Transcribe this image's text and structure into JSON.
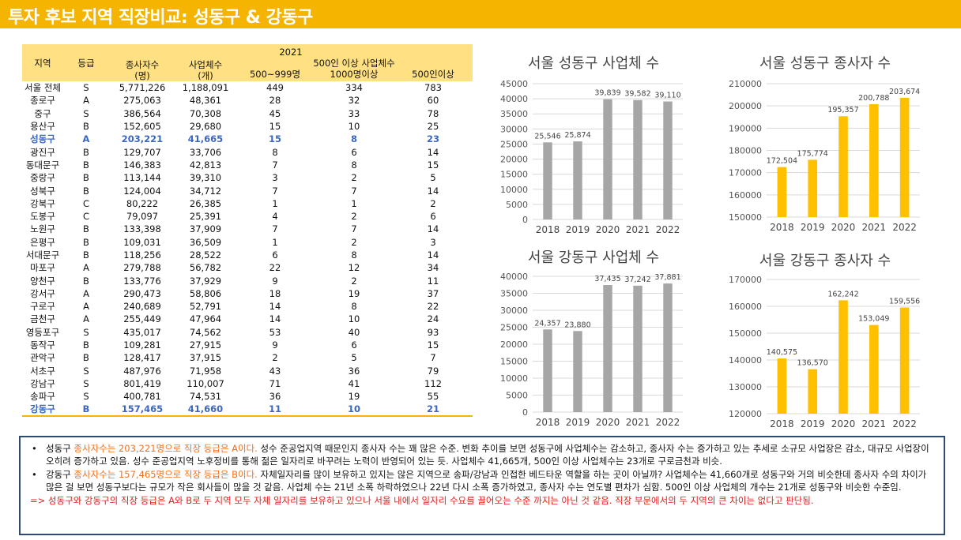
{
  "title": "투자 후보 지역 직장비교: 성동구 & 강동구",
  "table": {
    "year": "2021",
    "headers": {
      "region": "지역",
      "grade": "등급",
      "workers_1": "종사자수",
      "workers_2": "(명)",
      "biz_1": "사업체수",
      "biz_2": "(개)",
      "group": "500인 이상 사업체수",
      "c1": "500~999명",
      "c2": "1000명이상",
      "c3": "500인이상"
    },
    "rows": [
      [
        "서울 전체",
        "S",
        "5,771,226",
        "1,188,091",
        "449",
        "334",
        "783"
      ],
      [
        "종로구",
        "A",
        "275,063",
        "48,361",
        "28",
        "32",
        "60"
      ],
      [
        "중구",
        "S",
        "386,564",
        "70,308",
        "45",
        "33",
        "78"
      ],
      [
        "용산구",
        "B",
        "152,605",
        "29,680",
        "15",
        "10",
        "25"
      ],
      [
        "성동구",
        "A",
        "203,221",
        "41,665",
        "15",
        "8",
        "23"
      ],
      [
        "광진구",
        "B",
        "129,707",
        "33,706",
        "8",
        "6",
        "14"
      ],
      [
        "동대문구",
        "B",
        "146,383",
        "42,813",
        "7",
        "8",
        "15"
      ],
      [
        "중랑구",
        "B",
        "113,144",
        "39,310",
        "3",
        "2",
        "5"
      ],
      [
        "성북구",
        "B",
        "124,004",
        "34,712",
        "7",
        "7",
        "14"
      ],
      [
        "강북구",
        "C",
        "80,222",
        "26,385",
        "1",
        "1",
        "2"
      ],
      [
        "도봉구",
        "C",
        "79,097",
        "25,391",
        "4",
        "2",
        "6"
      ],
      [
        "노원구",
        "B",
        "133,398",
        "37,909",
        "7",
        "7",
        "14"
      ],
      [
        "은평구",
        "B",
        "109,031",
        "36,509",
        "1",
        "2",
        "3"
      ],
      [
        "서대문구",
        "B",
        "118,256",
        "28,522",
        "6",
        "8",
        "14"
      ],
      [
        "마포구",
        "A",
        "279,788",
        "56,782",
        "22",
        "12",
        "34"
      ],
      [
        "양천구",
        "B",
        "133,776",
        "37,929",
        "9",
        "2",
        "11"
      ],
      [
        "강서구",
        "A",
        "290,473",
        "58,806",
        "18",
        "19",
        "37"
      ],
      [
        "구로구",
        "A",
        "240,689",
        "52,791",
        "14",
        "8",
        "22"
      ],
      [
        "금천구",
        "A",
        "255,449",
        "47,964",
        "14",
        "10",
        "24"
      ],
      [
        "영등포구",
        "S",
        "435,017",
        "74,562",
        "53",
        "40",
        "93"
      ],
      [
        "동작구",
        "B",
        "109,281",
        "27,915",
        "9",
        "6",
        "15"
      ],
      [
        "관악구",
        "B",
        "128,417",
        "37,915",
        "2",
        "5",
        "7"
      ],
      [
        "서초구",
        "S",
        "487,976",
        "71,958",
        "43",
        "36",
        "79"
      ],
      [
        "강남구",
        "S",
        "801,419",
        "110,007",
        "71",
        "41",
        "112"
      ],
      [
        "송파구",
        "S",
        "400,781",
        "74,531",
        "36",
        "19",
        "55"
      ],
      [
        "강동구",
        "B",
        "157,465",
        "41,660",
        "11",
        "10",
        "21"
      ]
    ],
    "highlight_rows": [
      4,
      25
    ]
  },
  "chart_data": [
    {
      "type": "bar",
      "title": "서울 성동구 사업체 수",
      "categories": [
        "2018",
        "2019",
        "2020",
        "2021",
        "2022"
      ],
      "values": [
        25546,
        25874,
        39839,
        39582,
        39110
      ],
      "labels": [
        "25,546",
        "25,874",
        "39,839",
        "39,582",
        "39,110"
      ],
      "ylim": [
        0,
        45000
      ],
      "yticks": [
        0,
        5000,
        10000,
        15000,
        20000,
        25000,
        30000,
        35000,
        40000,
        45000
      ],
      "color": "#a6a6a6",
      "grid": true
    },
    {
      "type": "bar",
      "title": "서울 성동구 종사자 수",
      "categories": [
        "2018",
        "2019",
        "2020",
        "2021",
        "2022"
      ],
      "values": [
        172504,
        175774,
        195357,
        200788,
        203674
      ],
      "labels": [
        "172,504",
        "175,774",
        "195,357",
        "200,788",
        "203,674"
      ],
      "ylim": [
        150000,
        210000
      ],
      "yticks": [
        150000,
        160000,
        170000,
        180000,
        190000,
        200000,
        210000
      ],
      "color": "#ffc000",
      "grid": true
    },
    {
      "type": "bar",
      "title": "서울 강동구 사업체 수",
      "categories": [
        "2018",
        "2019",
        "2020",
        "2021",
        "2022"
      ],
      "values": [
        24357,
        23880,
        37435,
        37242,
        37881
      ],
      "labels": [
        "24,357",
        "23,880",
        "37,435",
        "37,242",
        "37,881"
      ],
      "ylim": [
        0,
        40000
      ],
      "yticks": [
        0,
        5000,
        10000,
        15000,
        20000,
        25000,
        30000,
        35000,
        40000
      ],
      "color": "#a6a6a6",
      "grid": true
    },
    {
      "type": "bar",
      "title": "서울 강동구 종사자 수",
      "categories": [
        "2018",
        "2019",
        "2020",
        "2021",
        "2022"
      ],
      "values": [
        140575,
        136570,
        162242,
        153049,
        159556
      ],
      "labels": [
        "140,575",
        "136,570",
        "162,242",
        "153,049",
        "159,556"
      ],
      "ylim": [
        120000,
        170000
      ],
      "yticks": [
        120000,
        130000,
        140000,
        150000,
        160000,
        170000
      ],
      "color": "#ffc000",
      "grid": true
    }
  ],
  "notes": {
    "bullet": "•",
    "n1_a": "성동구 ",
    "n1_b": "종사자수는 203,221명으로 직장 등급은 A이다.",
    "n1_c": " 성수 준공업지역 때문인지 종사자 수는 꽤 많은 수준. 변화 추이를 보면 성동구에 사업체수는 감소하고, 종사자 수는 증가하고 있는 추세로 소규모 사업장은 감소, 대규모 사업장이 오히려 증가하고 있음. 성수 준공업지역 노후정비를 통해 젊은 일자리로 바꾸려는 노력이 반영되어 있는 듯. 사업체수 41,665개, 500인 이상 사업체수는 23개로 구로금천과 비슷.",
    "n2_a": "강동구 ",
    "n2_b": "종사자수는 157,465명으로 직장 등급은 B이다.",
    "n2_c": " 자체일자리를 많이 보유하고 있지는 않은 지역으로 송파/강남과 인접한 베드타운 역할을 하는 곳이 아닐까? 사업체수는 41,660개로 성동구와 거의 비슷한데 종사자 수의 차이가 많은 걸 보면 성동구보다는 규모가 작은 회사들이 많을 것 같음. 사업체 수는 21년 소폭 하락하였으나 22년 다시 소폭 증가하였고, 종사자 수는 연도별 편차가 심함. 500인 이상 사업체의 개수는 21개로 성동구와 비슷한 수준임.",
    "conclusion": "=> 성동구와 강동구의 직장 등급은 A와 B로 두 지역 모두 자체 일자리를 보유하고 있으나 서울 내에서 일자리 수요를 끌어오는 수준 까지는 아닌 것 같음. 직장 부문에서의 두 지역의 큰 차이는 없다고 판단됨."
  },
  "colors": {
    "accent": "#f4b400",
    "header_bg": "#ffe082",
    "highlight_text": "#3a66c4",
    "note_orange": "#f07020",
    "note_red": "#e02020",
    "note_border": "#2f4a6d"
  }
}
